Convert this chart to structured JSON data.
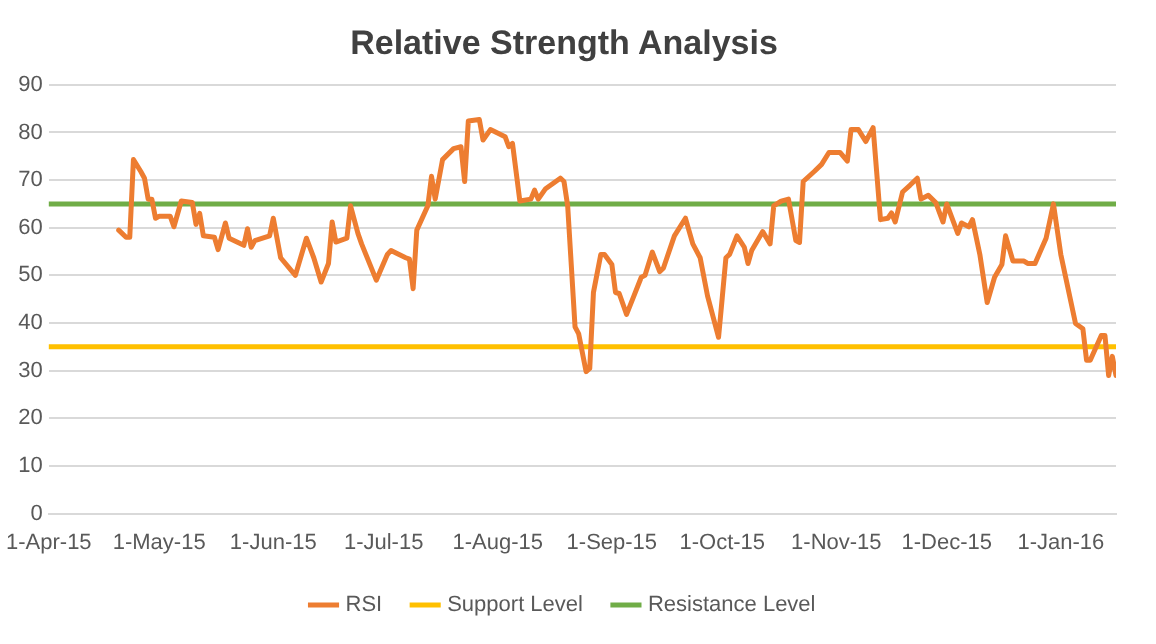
{
  "chart_data": {
    "type": "line",
    "title": "Relative Strength Analysis",
    "xlim": [
      "2015-04-01",
      "2016-01-16"
    ],
    "xticks": [
      {
        "value": "2015-04-01",
        "label": "1-Apr-15"
      },
      {
        "value": "2015-05-01",
        "label": "1-May-15"
      },
      {
        "value": "2015-06-01",
        "label": "1-Jun-15"
      },
      {
        "value": "2015-07-01",
        "label": "1-Jul-15"
      },
      {
        "value": "2015-08-01",
        "label": "1-Aug-15"
      },
      {
        "value": "2015-09-01",
        "label": "1-Sep-15"
      },
      {
        "value": "2015-10-01",
        "label": "1-Oct-15"
      },
      {
        "value": "2015-11-01",
        "label": "1-Nov-15"
      },
      {
        "value": "2015-12-01",
        "label": "1-Dec-15"
      },
      {
        "value": "2016-01-01",
        "label": "1-Jan-16"
      }
    ],
    "ylim": [
      0,
      90
    ],
    "yticks": [
      0,
      10,
      20,
      30,
      40,
      50,
      60,
      70,
      80,
      90
    ],
    "grid": "y",
    "legend": "bottom",
    "marker": "none",
    "line_style": "solid",
    "series": [
      {
        "name": "RSI",
        "color": "#ed7d31",
        "x": [
          "2015-04-20",
          "2015-04-22",
          "2015-04-23",
          "2015-04-24",
          "2015-04-26",
          "2015-04-27",
          "2015-04-28",
          "2015-04-29",
          "2015-04-30",
          "2015-05-01",
          "2015-05-04",
          "2015-05-05",
          "2015-05-07",
          "2015-05-10",
          "2015-05-11",
          "2015-05-12",
          "2015-05-13",
          "2015-05-16",
          "2015-05-17",
          "2015-05-19",
          "2015-05-20",
          "2015-05-24",
          "2015-05-25",
          "2015-05-26",
          "2015-05-27",
          "2015-05-31",
          "2015-06-01",
          "2015-06-03",
          "2015-06-07",
          "2015-06-10",
          "2015-06-12",
          "2015-06-14",
          "2015-06-16",
          "2015-06-17",
          "2015-06-18",
          "2015-06-21",
          "2015-06-22",
          "2015-06-24",
          "2015-06-25",
          "2015-06-29",
          "2015-07-02",
          "2015-07-03",
          "2015-07-07",
          "2015-07-08",
          "2015-07-09",
          "2015-07-10",
          "2015-07-13",
          "2015-07-14",
          "2015-07-15",
          "2015-07-17",
          "2015-07-20",
          "2015-07-22",
          "2015-07-23",
          "2015-07-24",
          "2015-07-27",
          "2015-07-28",
          "2015-07-30",
          "2015-08-03",
          "2015-08-04",
          "2015-08-05",
          "2015-08-07",
          "2015-08-10",
          "2015-08-11",
          "2015-08-12",
          "2015-08-14",
          "2015-08-18",
          "2015-08-19",
          "2015-08-20",
          "2015-08-22",
          "2015-08-23",
          "2015-08-25",
          "2015-08-26",
          "2015-08-27",
          "2015-08-29",
          "2015-08-30",
          "2015-09-01",
          "2015-09-02",
          "2015-09-03",
          "2015-09-05",
          "2015-09-07",
          "2015-09-09",
          "2015-09-10",
          "2015-09-12",
          "2015-09-14",
          "2015-09-15",
          "2015-09-18",
          "2015-09-21",
          "2015-09-23",
          "2015-09-25",
          "2015-09-27",
          "2015-09-30",
          "2015-10-01",
          "2015-10-02",
          "2015-10-03",
          "2015-10-05",
          "2015-10-07",
          "2015-10-08",
          "2015-10-09",
          "2015-10-12",
          "2015-10-14",
          "2015-10-15",
          "2015-10-17",
          "2015-10-19",
          "2015-10-21",
          "2015-10-22",
          "2015-10-23",
          "2015-10-26",
          "2015-10-28",
          "2015-10-30",
          "2015-11-02",
          "2015-11-04",
          "2015-11-05",
          "2015-11-07",
          "2015-11-09",
          "2015-11-11",
          "2015-11-13",
          "2015-11-15",
          "2015-11-16",
          "2015-11-17",
          "2015-11-19",
          "2015-11-21",
          "2015-11-23",
          "2015-11-24",
          "2015-11-26",
          "2015-11-28",
          "2015-11-30",
          "2015-12-01",
          "2015-12-04",
          "2015-12-05",
          "2015-12-07",
          "2015-12-08",
          "2015-12-10",
          "2015-12-12",
          "2015-12-14",
          "2015-12-16",
          "2015-12-17",
          "2015-12-19",
          "2015-12-22",
          "2015-12-23",
          "2015-12-25",
          "2015-12-28",
          "2015-12-30",
          "2016-01-01",
          "2016-01-05",
          "2016-01-07",
          "2016-01-08",
          "2016-01-09",
          "2016-01-12",
          "2016-01-13",
          "2016-01-14",
          "2016-01-15",
          "2016-01-16"
        ],
        "values": [
          59.5,
          58,
          58,
          74.3,
          71.8,
          70.4,
          66,
          66,
          62,
          62.4,
          62.4,
          60.2,
          65.6,
          65.3,
          60.7,
          63,
          58.3,
          58,
          55.4,
          61,
          57.8,
          56.3,
          59.8,
          55.9,
          57.3,
          58.3,
          62,
          53.7,
          50,
          57.8,
          53.7,
          48.6,
          52.5,
          61.2,
          57,
          57.8,
          64.6,
          58.8,
          56.6,
          49,
          54.4,
          55.2,
          53.7,
          53.4,
          47.2,
          59.5,
          64.6,
          70.8,
          66,
          74.3,
          76.6,
          77,
          69.7,
          82.4,
          82.7,
          78.4,
          80.6,
          79.1,
          77,
          77.7,
          65.6,
          66,
          67.9,
          66,
          68.2,
          70.4,
          69.7,
          64.6,
          39.2,
          37.7,
          29.8,
          30.5,
          46.4,
          54.4,
          54.4,
          52.3,
          46.4,
          46.2,
          41.8,
          45.7,
          49.6,
          50,
          54.9,
          50.8,
          51.5,
          58.3,
          62,
          56.6,
          53.7,
          45.7,
          37,
          45.3,
          53.7,
          54.4,
          58.3,
          55.9,
          52.5,
          55.2,
          59.2,
          56.6,
          64.6,
          65.6,
          66,
          57.3,
          56.9,
          69.7,
          71.8,
          73.3,
          75.8,
          75.8,
          74,
          80.6,
          80.6,
          78.1,
          81,
          61.7,
          62,
          63.1,
          61.2,
          67.5,
          68.9,
          70.4,
          66,
          66.8,
          65.3,
          61.2,
          65,
          58.8,
          61,
          60.2,
          61.7,
          54.4,
          44.3,
          49.6,
          52.3,
          58.3,
          53,
          53,
          52.5,
          52.5,
          57.8,
          65,
          54.4,
          39.9,
          38.8,
          32.2,
          32.2,
          37.4,
          37.4,
          29,
          33,
          29
        ]
      },
      {
        "name": "Support Level",
        "color": "#ffc000",
        "x": [
          "2015-04-01",
          "2016-01-16"
        ],
        "values": [
          35,
          35
        ]
      },
      {
        "name": "Resistance Level",
        "color": "#70ad47",
        "x": [
          "2015-04-01",
          "2016-01-16"
        ],
        "values": [
          65,
          65
        ]
      }
    ]
  }
}
